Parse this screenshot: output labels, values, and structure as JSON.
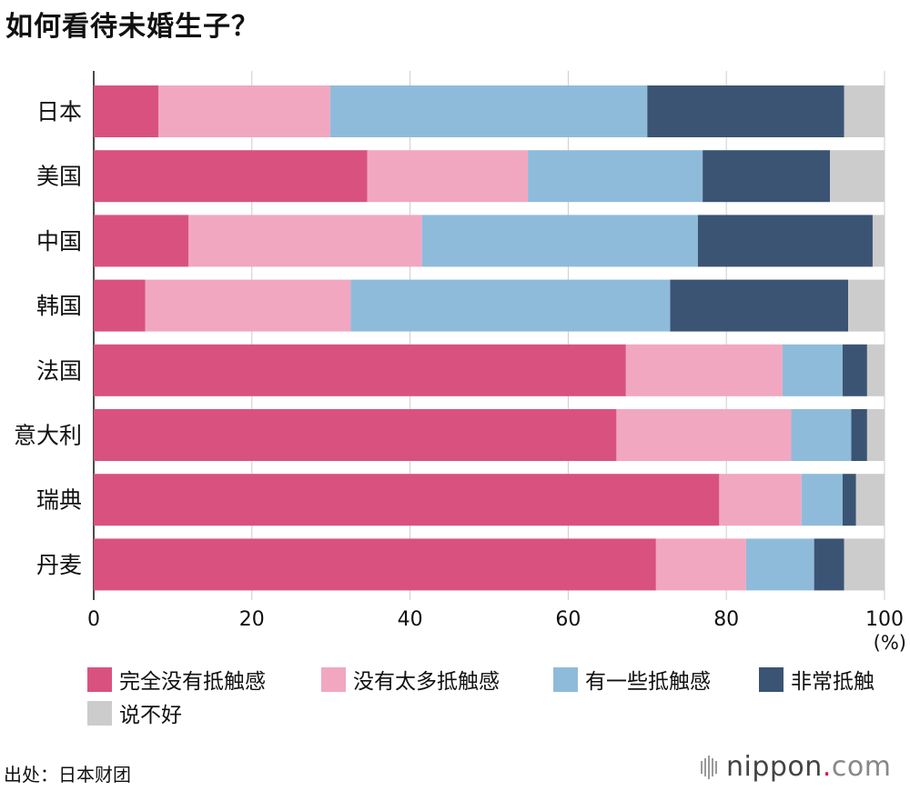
{
  "title": "如何看待未婚生子？",
  "unit_label": "(%)",
  "source": "出处：日本财团",
  "logo": {
    "name": "nippon",
    "dot": ".",
    "suffix": "com"
  },
  "colors": {
    "no_resistance": "#d9527f",
    "little_resistance": "#f2a7c0",
    "some_resistance": "#8fbbdb",
    "strong_resistance": "#3b5474",
    "unsure": "#cccccc",
    "gridline": "#cccccc"
  },
  "chart_data": {
    "type": "bar",
    "orientation": "horizontal",
    "stacked": true,
    "categories": [
      "日本",
      "美国",
      "中国",
      "韩国",
      "法国",
      "意大利",
      "瑞典",
      "丹麦"
    ],
    "series": [
      {
        "name": "完全没有抵触感",
        "values": [
          8.2,
          34.6,
          12.0,
          6.5,
          67.3,
          66.1,
          79.1,
          71.1
        ]
      },
      {
        "name": "没有太多抵触感",
        "values": [
          21.7,
          20.3,
          29.5,
          26.0,
          19.8,
          22.1,
          10.4,
          11.4
        ]
      },
      {
        "name": "有一些抵触感",
        "values": [
          40.1,
          22.1,
          34.9,
          40.4,
          7.6,
          7.6,
          5.2,
          8.6
        ]
      },
      {
        "name": "非常抵触",
        "values": [
          24.9,
          16.1,
          22.1,
          22.5,
          3.1,
          2.0,
          1.7,
          3.8
        ]
      },
      {
        "name": "说不好",
        "values": [
          5.1,
          6.9,
          1.5,
          4.6,
          2.2,
          2.2,
          3.6,
          5.1
        ]
      }
    ],
    "xlim": [
      0,
      100
    ],
    "xticks": [
      "0",
      "20",
      "40",
      "60",
      "80",
      "100"
    ],
    "grid": true,
    "legend_position": "bottom"
  }
}
